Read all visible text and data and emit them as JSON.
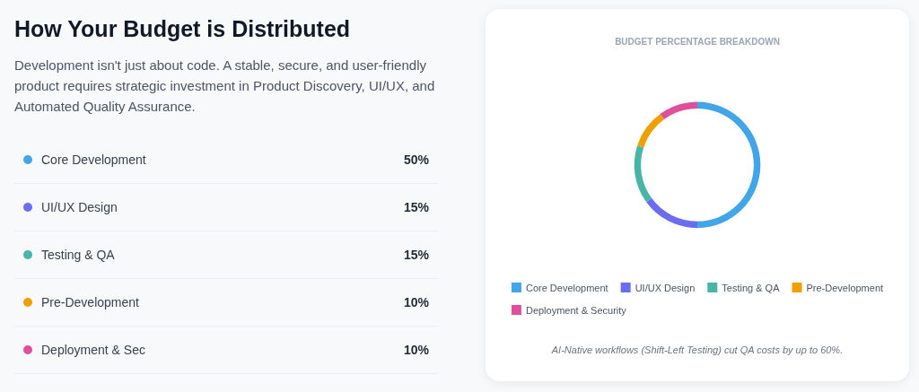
{
  "chart_data": [
    {
      "type": "other",
      "title": "How Your Budget is Distributed",
      "subtitle": "Development isn't just about code. A stable, secure, and user-friendly product requires strategic investment in Product Discovery, UI/UX, and Automated Quality Assurance.",
      "categories": [
        "Core Development",
        "UI/UX Design",
        "Testing & QA",
        "Pre-Development",
        "Deployment & Sec"
      ],
      "values": [
        50,
        15,
        15,
        10,
        10
      ],
      "value_labels": [
        "50%",
        "15%",
        "15%",
        "10%",
        "10%"
      ],
      "colors": [
        "#42a5e8",
        "#6a6cf2",
        "#47b6a6",
        "#eea000",
        "#e0509a"
      ]
    },
    {
      "type": "donut",
      "title": "BUDGET PERCENTAGE BREAKDOWN",
      "categories": [
        "Core Development",
        "UI/UX Design",
        "Testing & QA",
        "Pre-Development",
        "Deployment & Security"
      ],
      "values": [
        50,
        15,
        15,
        10,
        10
      ],
      "colors": [
        "#42a5e8",
        "#6a6cf2",
        "#47b6a6",
        "#eea000",
        "#e0509a"
      ],
      "legend": "bottom",
      "annotations": [
        "AI-Native workflows (Shift-Left Testing) cut QA costs by up to 60%."
      ]
    }
  ]
}
